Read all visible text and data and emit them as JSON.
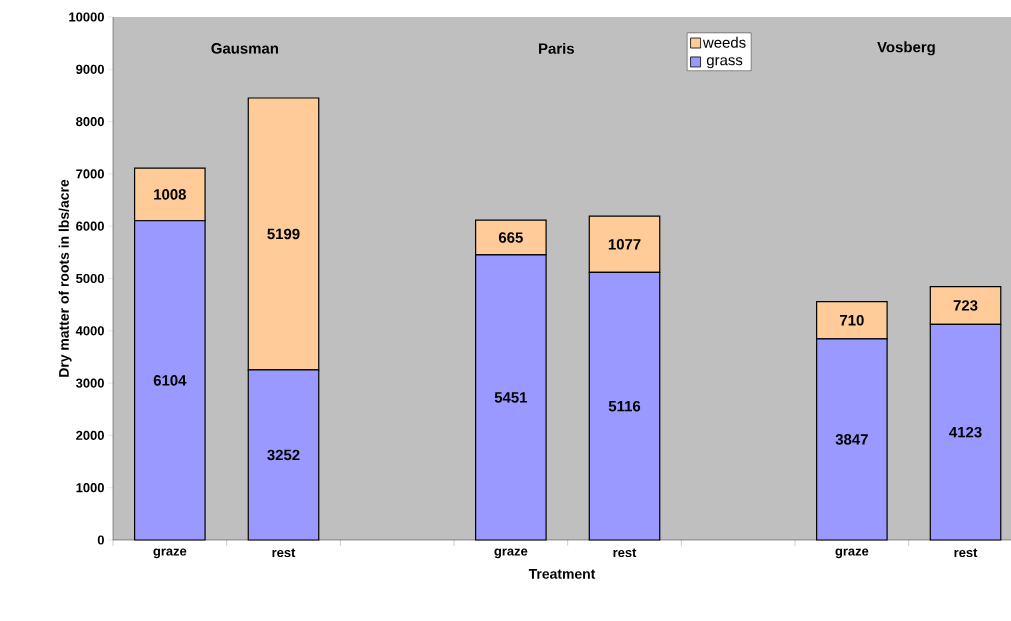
{
  "chart_data": {
    "type": "bar",
    "stacked": true,
    "xlabel": "Treatment",
    "ylabel": "Dry matter of roots in lbs/acre",
    "categories": [
      "graze",
      "rest",
      null,
      "graze",
      "rest",
      null,
      "graze",
      "rest"
    ],
    "series": [
      {
        "name": "grass",
        "color": "#9999ff",
        "values": [
          6104,
          3252,
          null,
          5451,
          5116,
          null,
          3847,
          4123
        ]
      },
      {
        "name": "weeds",
        "color": "#ffcc99",
        "values": [
          1008,
          5199,
          null,
          665,
          1077,
          null,
          710,
          723
        ]
      }
    ],
    "ylim": [
      0,
      10000
    ],
    "yticks": [
      0,
      1000,
      2000,
      3000,
      4000,
      5000,
      6000,
      7000,
      8000,
      9000,
      10000
    ],
    "data_labels": true,
    "grid": false,
    "legend": "top",
    "annotations": [
      "Gausman",
      "Paris",
      "Vosberg"
    ]
  }
}
